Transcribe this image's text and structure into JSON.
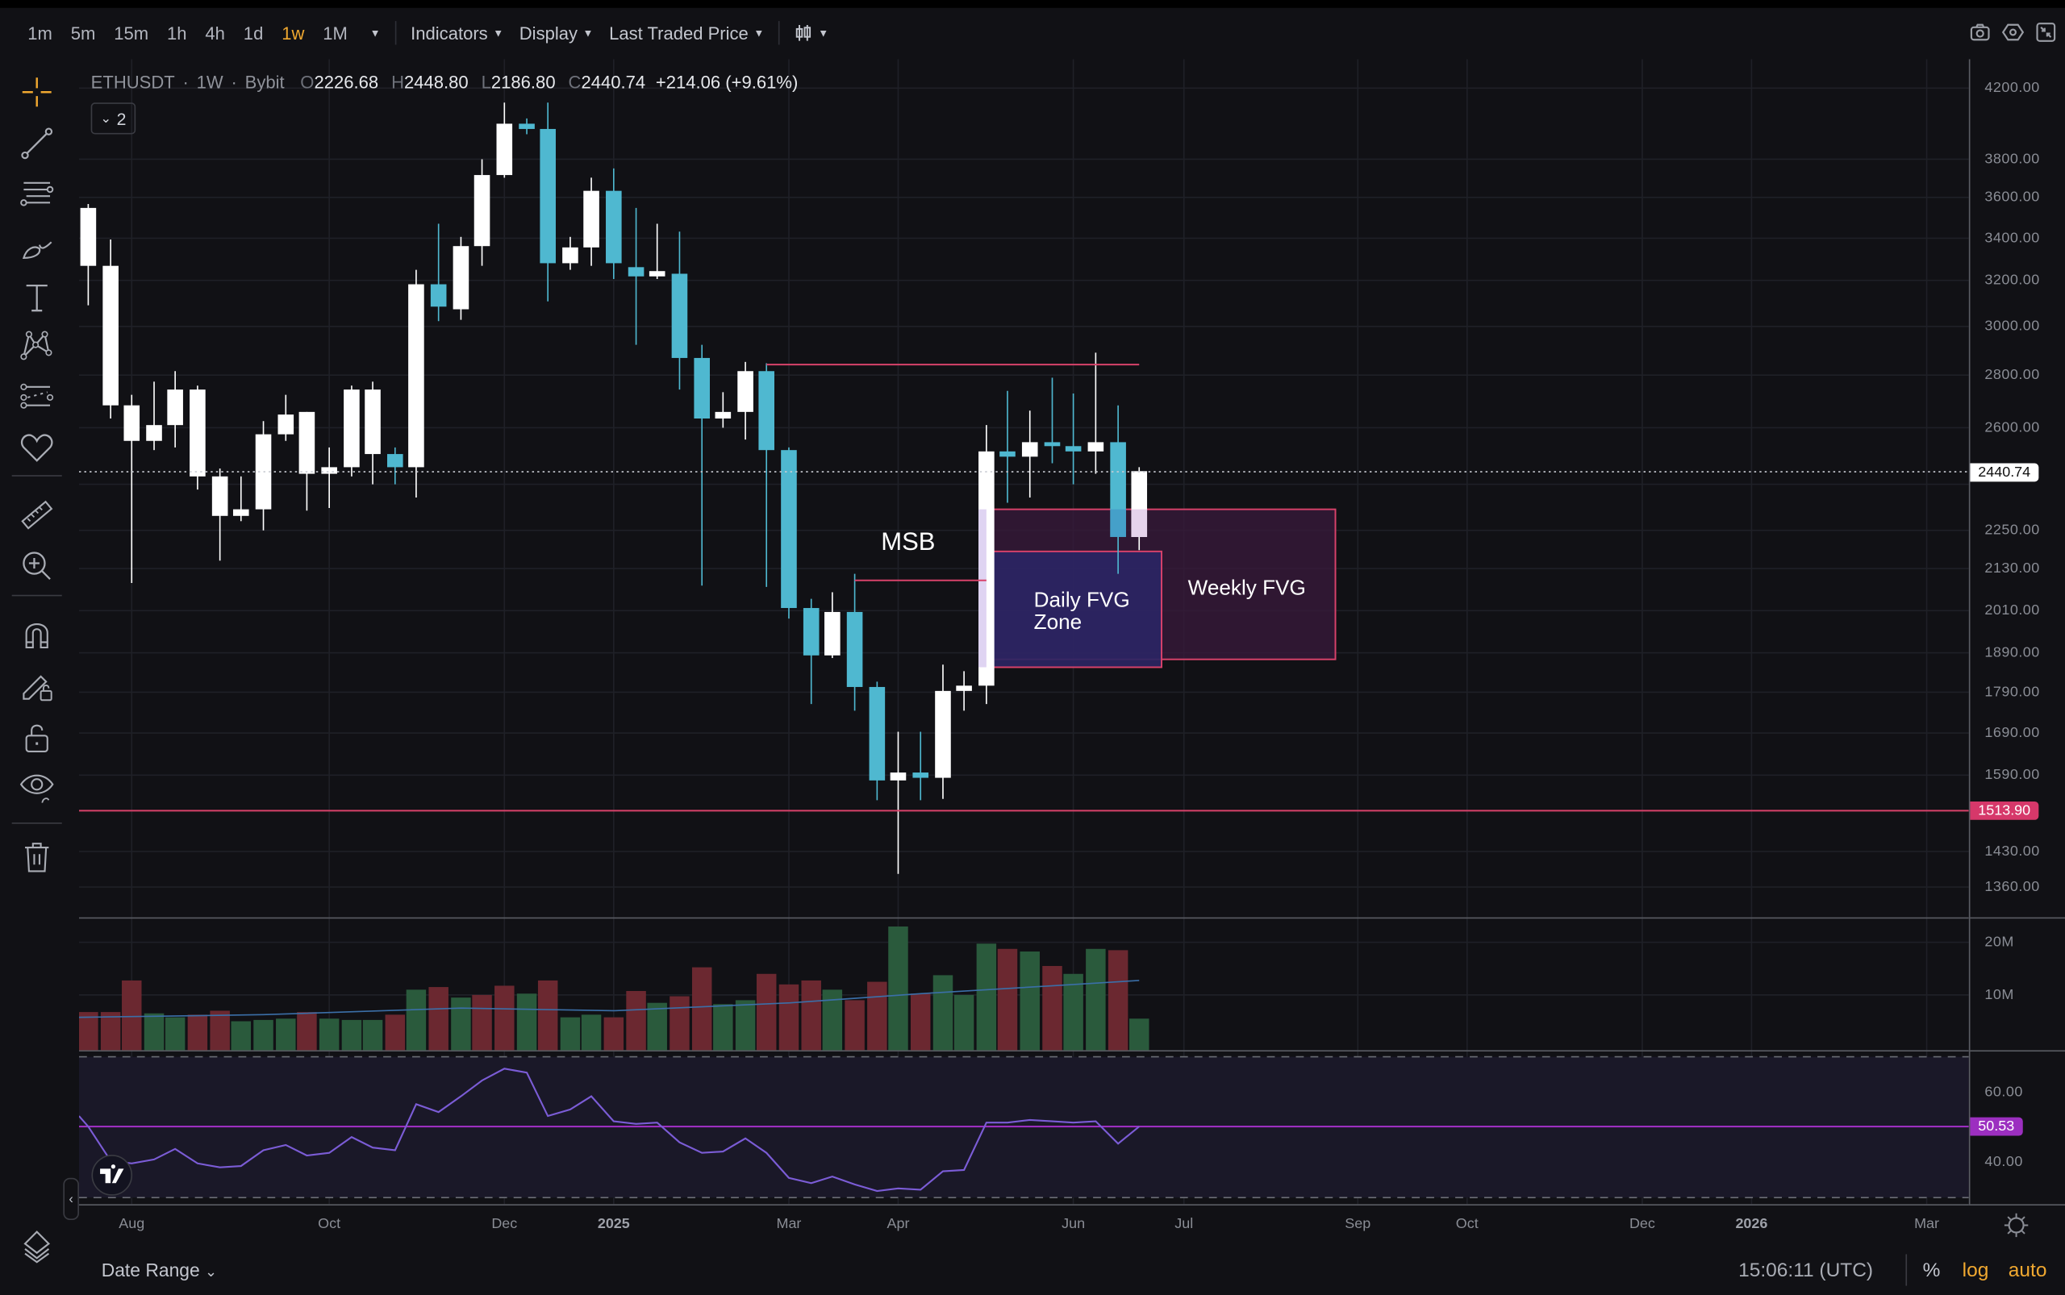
{
  "toolbar": {
    "timeframes": [
      "1m",
      "5m",
      "15m",
      "1h",
      "4h",
      "1d",
      "1w",
      "1M"
    ],
    "active_timeframe": "1w",
    "indicators_label": "Indicators",
    "display_label": "Display",
    "price_source_label": "Last Traded Price",
    "chart_type_icon": "candles-icon",
    "right_icons": [
      "camera-icon",
      "settings-hexagon-icon",
      "fullscreen-exit-icon"
    ]
  },
  "left_tools": [
    {
      "name": "crosshair",
      "icon": "crosshair-icon"
    },
    {
      "name": "trend-line",
      "icon": "trend-line-icon"
    },
    {
      "name": "fib-channel",
      "icon": "fib-lines-icon"
    },
    {
      "name": "brush",
      "icon": "brush-icon"
    },
    {
      "name": "text",
      "icon": "text-icon"
    },
    {
      "name": "pattern",
      "icon": "xabcd-pattern-icon"
    },
    {
      "name": "forecast",
      "icon": "prediction-icon"
    },
    {
      "name": "favorites",
      "icon": "heart-icon"
    },
    {
      "name": "measure",
      "icon": "ruler-icon"
    },
    {
      "name": "zoom-in",
      "icon": "zoom-in-icon"
    },
    {
      "name": "magnet",
      "icon": "magnet-icon"
    },
    {
      "name": "stay-drawing",
      "icon": "pencil-lock-icon"
    },
    {
      "name": "lock-drawings",
      "icon": "lock-open-icon"
    },
    {
      "name": "hide-drawings",
      "icon": "eye-brush-icon"
    },
    {
      "name": "remove-drawings",
      "icon": "trash-icon"
    }
  ],
  "legend": {
    "symbol": "ETHUSDT",
    "interval": "1W",
    "exchange": "Bybit",
    "open_label": "O",
    "open": "2226.68",
    "high_label": "H",
    "high": "2448.80",
    "low_label": "L",
    "low": "2186.80",
    "close_label": "C",
    "close": "2440.74",
    "change": "+214.06 (+9.61%)",
    "collapsed_count": "2"
  },
  "annotations": {
    "msb": "MSB",
    "daily_fvg": "Daily FVG\nZone",
    "weekly_fvg": "Weekly FVG"
  },
  "price_axis": {
    "labels": [
      "4200.00",
      "3800.00",
      "3600.00",
      "3400.00",
      "3200.00",
      "3000.00",
      "2800.00",
      "2600.00",
      "2400.00",
      "2250.00",
      "2130.00",
      "2010.00",
      "1890.00",
      "1790.00",
      "1690.00",
      "1590.00",
      "1430.00",
      "1360.00"
    ],
    "last_price_tag": "2440.74",
    "line_price_tag": "1513.90"
  },
  "volume_axis": {
    "labels": [
      "20M",
      "10M"
    ]
  },
  "rsi_axis": {
    "labels": [
      "60.00",
      "40.00"
    ],
    "current_tag": "50.53"
  },
  "time_axis": {
    "labels": [
      {
        "text": "Aug",
        "bold": false
      },
      {
        "text": "Oct",
        "bold": false
      },
      {
        "text": "Dec",
        "bold": false
      },
      {
        "text": "2025",
        "bold": true
      },
      {
        "text": "Mar",
        "bold": false
      },
      {
        "text": "Apr",
        "bold": false
      },
      {
        "text": "Jun",
        "bold": false
      },
      {
        "text": "Jul",
        "bold": false
      },
      {
        "text": "Sep",
        "bold": false
      },
      {
        "text": "Oct",
        "bold": false
      },
      {
        "text": "Dec",
        "bold": false
      },
      {
        "text": "2026",
        "bold": true
      },
      {
        "text": "Mar",
        "bold": false
      }
    ]
  },
  "bottom_bar": {
    "date_range_label": "Date Range",
    "clock": "15:06:11 (UTC)",
    "percent_label": "%",
    "log_label": "log",
    "auto_label": "auto"
  },
  "colors": {
    "background": "#111115",
    "up_candle": "#ffffff",
    "down_candle": "#4fb8d0",
    "volume_up": "#2a5a3c",
    "volume_down": "#6b2830",
    "annotation_line": "#d8426a",
    "rsi_line": "#7b5cd6",
    "rsi_mid": "#9c2fc0",
    "active_accent": "#f0a830"
  }
}
